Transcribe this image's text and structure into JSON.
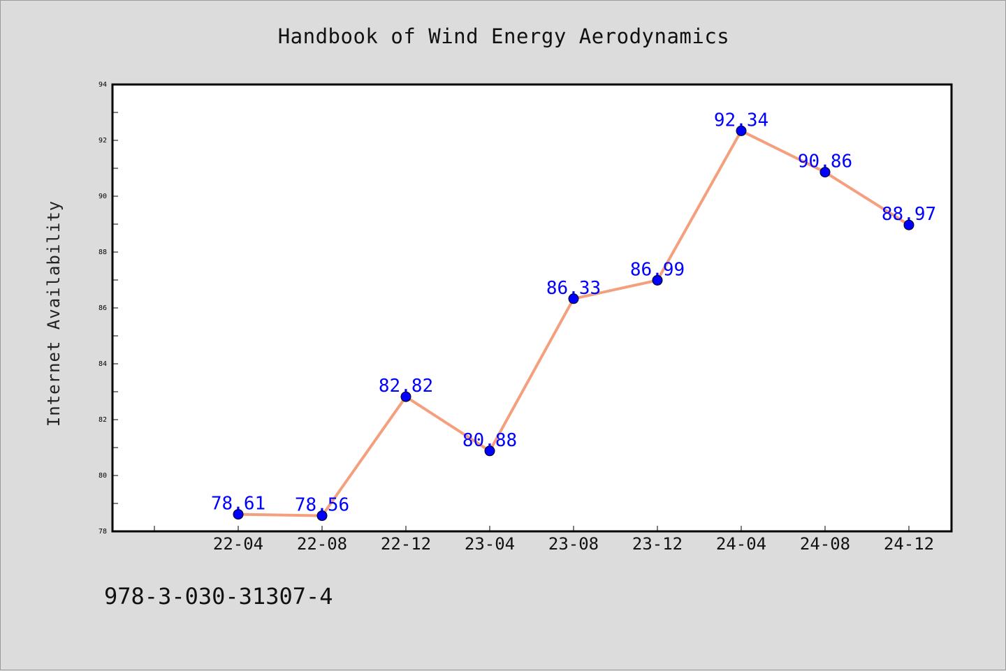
{
  "page": {
    "title": "Handbook of Wind Energy Aerodynamics",
    "footer_code": "978-3-030-31307-4"
  },
  "colors": {
    "background": "#dcdcdc",
    "plot_background": "#ffffff",
    "line": "#f4a07e",
    "marker": "#0000ff",
    "data_label": "#0000ff",
    "axis": "#000000"
  },
  "chart_data": {
    "type": "line",
    "title": "Handbook of Wind Energy Aerodynamics",
    "xlabel": "",
    "ylabel": "Internet Availability",
    "categories": [
      "22-04",
      "22-08",
      "22-12",
      "23-04",
      "23-08",
      "23-12",
      "24-04",
      "24-08",
      "24-12"
    ],
    "series": [
      {
        "values": [
          78.61,
          78.56,
          82.82,
          80.88,
          86.33,
          86.99,
          92.34,
          90.86,
          88.97
        ],
        "data_labels": [
          "78.61",
          "78.56",
          "82.82",
          "80.88",
          "86.33",
          "86.99",
          "92.34",
          "90.86",
          "88.97"
        ]
      }
    ],
    "ylim": [
      78,
      94
    ],
    "y_ticks": [
      "78",
      "80",
      "82",
      "84",
      "86",
      "88",
      "90",
      "92",
      "94"
    ],
    "grid": false,
    "legend": "none"
  }
}
